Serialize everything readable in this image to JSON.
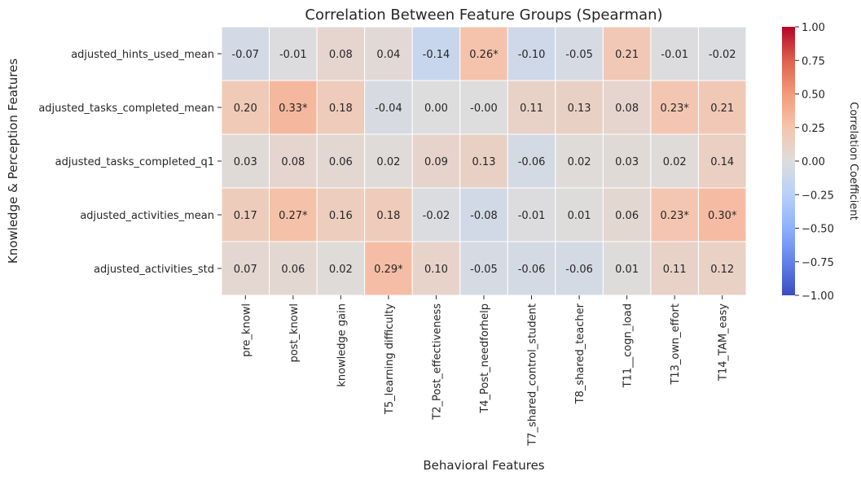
{
  "chart_data": {
    "type": "heatmap",
    "title": "Correlation Between Feature Groups (Spearman)",
    "xlabel": "Behavioral Features",
    "ylabel": "Knowledge & Perception Features",
    "columns": [
      "pre_knowl",
      "post_knowl",
      "knowledge gain",
      "T5_learning difficulty",
      "T2_Post_effectiveness",
      "T4_Post_needforhelp",
      "T7_shared_control_student",
      "T8_shared_teacher",
      "T11__cogn_load",
      "T13_own_effort",
      "T14_TAM_easy"
    ],
    "rows": [
      "adjusted_hints_used_mean",
      "adjusted_tasks_completed_mean",
      "adjusted_tasks_completed_q1",
      "adjusted_activities_mean",
      "adjusted_activities_std"
    ],
    "values": [
      [
        -0.07,
        -0.01,
        0.08,
        0.04,
        -0.14,
        0.26,
        -0.1,
        -0.05,
        0.21,
        -0.01,
        -0.02
      ],
      [
        0.2,
        0.33,
        0.18,
        -0.04,
        0.0,
        -0.0,
        0.11,
        0.13,
        0.08,
        0.23,
        0.21
      ],
      [
        0.03,
        0.08,
        0.06,
        0.02,
        0.09,
        0.13,
        -0.06,
        0.02,
        0.03,
        0.02,
        0.14
      ],
      [
        0.17,
        0.27,
        0.16,
        0.18,
        -0.02,
        -0.08,
        -0.01,
        0.01,
        0.06,
        0.23,
        0.3
      ],
      [
        0.07,
        0.06,
        0.02,
        0.29,
        0.1,
        -0.05,
        -0.06,
        -0.06,
        0.01,
        0.11,
        0.12
      ]
    ],
    "annotations": [
      [
        "-0.07",
        "-0.01",
        "0.08",
        "0.04",
        "-0.14",
        "0.26*",
        "-0.10",
        "-0.05",
        "0.21",
        "-0.01",
        "-0.02"
      ],
      [
        "0.20",
        "0.33*",
        "0.18",
        "-0.04",
        "0.00",
        "-0.00",
        "0.11",
        "0.13",
        "0.08",
        "0.23*",
        "0.21"
      ],
      [
        "0.03",
        "0.08",
        "0.06",
        "0.02",
        "0.09",
        "0.13",
        "-0.06",
        "0.02",
        "0.03",
        "0.02",
        "0.14"
      ],
      [
        "0.17",
        "0.27*",
        "0.16",
        "0.18",
        "-0.02",
        "-0.08",
        "-0.01",
        "0.01",
        "0.06",
        "0.23*",
        "0.30*"
      ],
      [
        "0.07",
        "0.06",
        "0.02",
        "0.29*",
        "0.10",
        "-0.05",
        "-0.06",
        "-0.06",
        "0.01",
        "0.11",
        "0.12"
      ]
    ],
    "colormap": "coolwarm",
    "vmin": -1.0,
    "vmax": 1.0,
    "colorbar": {
      "label": "Correlation Coefficient",
      "ticks": [
        1.0,
        0.75,
        0.5,
        0.25,
        0.0,
        -0.25,
        -0.5,
        -0.75,
        -1.0
      ],
      "tick_labels": [
        "1.00",
        "0.75",
        "0.50",
        "0.25",
        "0.00",
        "−0.25",
        "−0.50",
        "−0.75",
        "−1.00"
      ]
    }
  }
}
